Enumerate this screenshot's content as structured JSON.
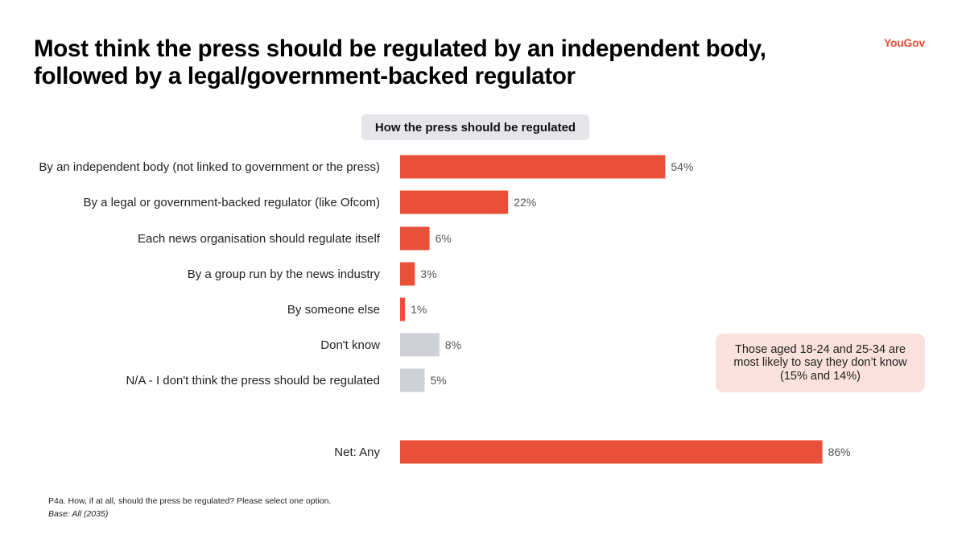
{
  "header": {
    "title_line1": "Most think the press should be regulated by an independent body,",
    "title_line2": "followed by a legal/government-backed regulator",
    "logo": "YouGov"
  },
  "chart_data": {
    "type": "bar",
    "orientation": "horizontal",
    "title": "How the press should be regulated",
    "xlim": [
      0,
      100
    ],
    "categories": [
      "By an independent body (not linked to government or the press)",
      "By a legal or government-backed regulator (like Ofcom)",
      "Each news organisation should regulate itself",
      "By a group run by the news industry",
      "By someone else",
      "Don't know",
      "N/A - I don't think the press should be regulated",
      "Net: Any"
    ],
    "values": [
      54,
      22,
      6,
      3,
      1,
      8,
      5,
      86
    ],
    "value_labels": [
      "54%",
      "22%",
      "6%",
      "3%",
      "1%",
      "8%",
      "5%",
      "86%"
    ],
    "bar_colors": [
      "#e8503a",
      "#e8503a",
      "#e8503a",
      "#e8503a",
      "#e8503a",
      "#cfd0d8",
      "#cfd0d8",
      "#e8503a"
    ]
  },
  "callout": {
    "text": "Those aged 18-24 and 25-34 are most likely to say they don’t know (15% and 14%)"
  },
  "footnote": {
    "question": "P4a. How, if at all, should the press be regulated? Please select one option.",
    "base": "Base: All (2035)"
  }
}
